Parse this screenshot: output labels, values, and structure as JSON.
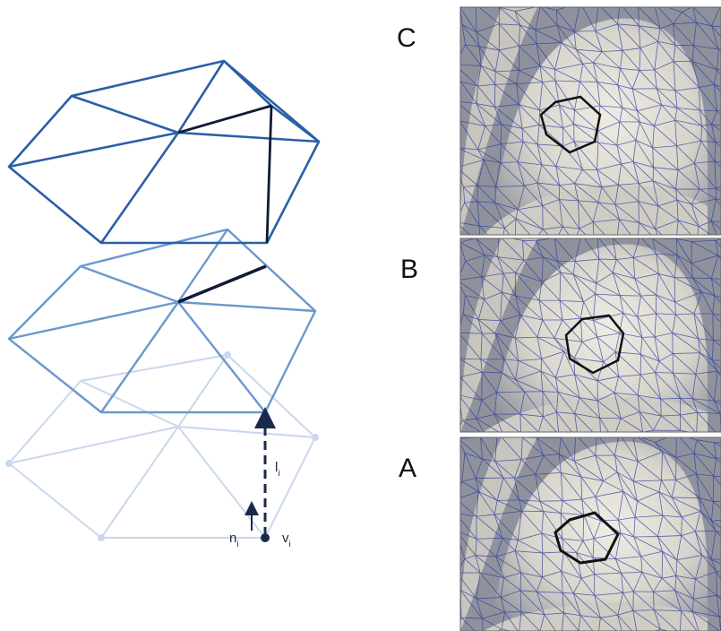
{
  "panels": [
    {
      "id": "C",
      "label": "C"
    },
    {
      "id": "B",
      "label": "B"
    },
    {
      "id": "A",
      "label": "A"
    }
  ],
  "symbols": {
    "normal": {
      "base": "n",
      "sub": "i"
    },
    "vertex": {
      "base": "v",
      "sub": "i"
    },
    "length": {
      "base": "l",
      "sub": "i"
    }
  },
  "colors": {
    "top_layer": "#2a5fa8",
    "middle_layer": "#6b98cc",
    "bottom_layer": "#c9d8ec",
    "highlight_edge": "#0f1a35",
    "mesh_line": "#2b3a9a",
    "surface": "#dcdad2",
    "surface_shadow": "#8c8f99"
  },
  "icons": [
    "upward-arrow-icon",
    "dashed-displacement-arrow-icon",
    "vertex-dot-icon"
  ]
}
